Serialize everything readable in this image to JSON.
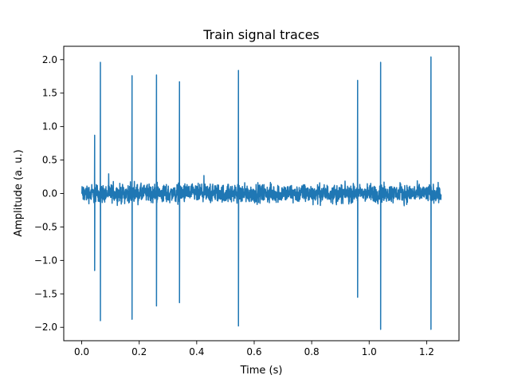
{
  "chart_data": {
    "type": "line",
    "title": "Train signal traces",
    "xlabel": "Time (s)",
    "ylabel": "Amplitude (a. u.)",
    "xlim": [
      -0.0625,
      1.3125
    ],
    "ylim": [
      -2.2,
      2.2
    ],
    "xticks": [
      0.0,
      0.2,
      0.4,
      0.6,
      0.8,
      1.0,
      1.2
    ],
    "xtick_labels": [
      "0.0",
      "0.2",
      "0.4",
      "0.6",
      "0.8",
      "1.0",
      "1.2"
    ],
    "yticks": [
      -2.0,
      -1.5,
      -1.0,
      -0.5,
      0.0,
      0.5,
      1.0,
      1.5,
      2.0
    ],
    "ytick_labels": [
      "−2.0",
      "−1.5",
      "−1.0",
      "−0.5",
      "0.0",
      "0.5",
      "1.0",
      "1.5",
      "2.0"
    ],
    "grid": false,
    "series": [
      {
        "color": "#1f77b4",
        "x_range": [
          0.0,
          1.25
        ],
        "baseline_noise_amplitude": 0.2,
        "spikes": [
          {
            "x": 0.045,
            "max": 0.87,
            "min": -1.15
          },
          {
            "x": 0.065,
            "max": 1.96,
            "min": -1.9
          },
          {
            "x": 0.175,
            "max": 1.76,
            "min": -1.88
          },
          {
            "x": 0.26,
            "max": 1.77,
            "min": -1.68
          },
          {
            "x": 0.34,
            "max": 1.67,
            "min": -1.63
          },
          {
            "x": 0.545,
            "max": 1.84,
            "min": -1.98
          },
          {
            "x": 0.96,
            "max": 1.69,
            "min": -1.55
          },
          {
            "x": 1.04,
            "max": 1.96,
            "min": -2.03
          },
          {
            "x": 1.215,
            "max": 2.04,
            "min": -2.03
          }
        ]
      }
    ]
  }
}
